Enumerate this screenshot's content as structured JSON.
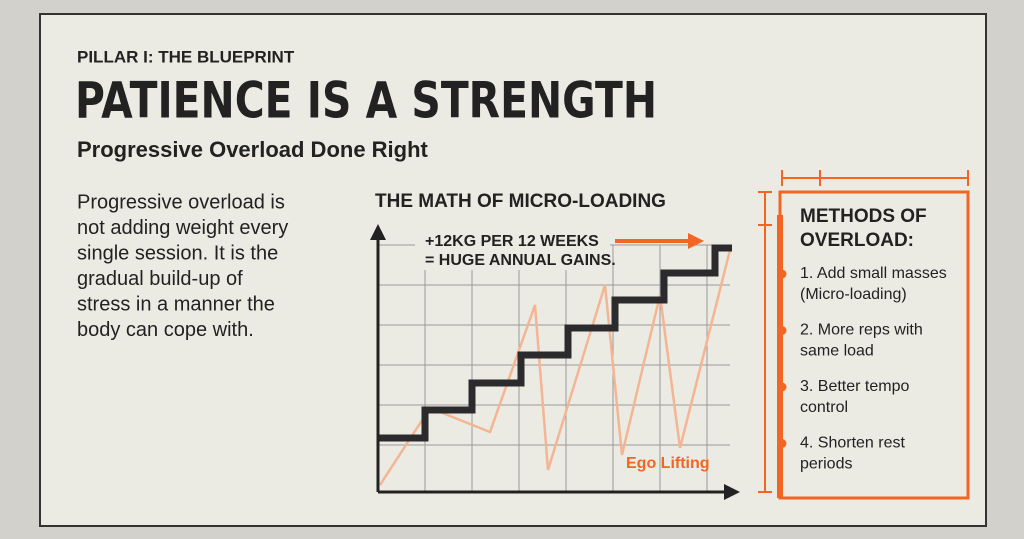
{
  "header": {
    "kicker": "PILLAR I: THE BLUEPRINT",
    "title": "PATIENCE IS A STRENGTH",
    "subtitle": "Progressive Overload Done Right"
  },
  "body": {
    "lines": [
      "Progressive overload is",
      "not adding weight every",
      "single session. It is the",
      "gradual build-up of",
      "stress in a manner the",
      "body can cope with."
    ]
  },
  "chart": {
    "title": "THE MATH OF MICRO-LOADING",
    "annotation": [
      "+12KG PER 12 WEEKS",
      "= HUGE ANNUAL GAINS."
    ],
    "line_label": "Ego Lifting"
  },
  "methods": {
    "title": [
      "METHODS OF",
      "OVERLOAD:"
    ],
    "items": [
      [
        "1. Add small masses",
        "(Micro-loading)"
      ],
      [
        "2. More reps with",
        "same load"
      ],
      [
        "3. Better tempo",
        "control"
      ],
      [
        "4. Shorten rest",
        "periods"
      ]
    ]
  }
}
